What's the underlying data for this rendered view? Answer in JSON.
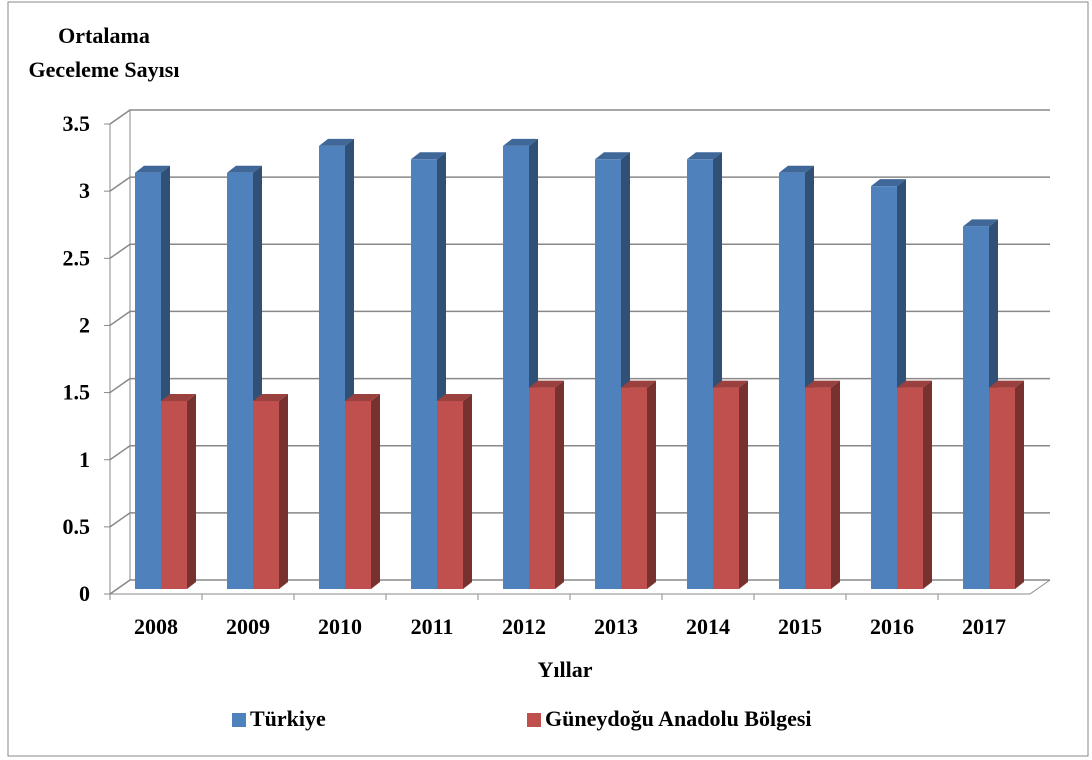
{
  "chart_data": {
    "type": "bar3d",
    "ylabel_lines": [
      "Ortalama",
      "Geceleme Sayısı"
    ],
    "xlabel": "Yıllar",
    "categories": [
      "2008",
      "2009",
      "2010",
      "2011",
      "2012",
      "2013",
      "2014",
      "2015",
      "2016",
      "2017"
    ],
    "series": [
      {
        "name": "Türkiye",
        "color": "#4f81bd",
        "values": [
          3.1,
          3.1,
          3.3,
          3.2,
          3.3,
          3.2,
          3.2,
          3.1,
          3.0,
          2.7
        ]
      },
      {
        "name": "Güneydoğu Anadolu Bölgesi",
        "color": "#c0504d",
        "values": [
          1.4,
          1.4,
          1.4,
          1.4,
          1.5,
          1.5,
          1.5,
          1.5,
          1.5,
          1.5
        ]
      }
    ],
    "ylim": [
      0,
      3.5
    ],
    "yticks": [
      0,
      0.5,
      1,
      1.5,
      2,
      2.5,
      3,
      3.5
    ],
    "grid": true,
    "legend": "bottom"
  }
}
